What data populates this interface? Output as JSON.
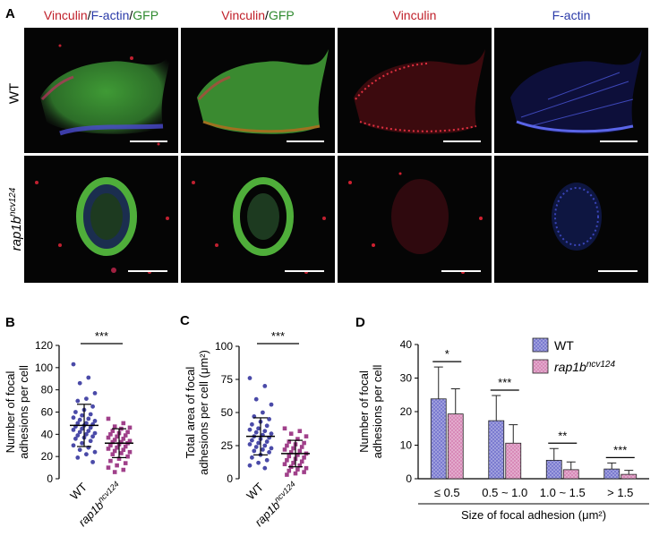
{
  "figure": {
    "panel_letters": {
      "a": "A",
      "b": "B",
      "c": "C",
      "d": "D"
    },
    "column_titles": [
      {
        "parts": [
          {
            "text": "Vinculin",
            "color": "#c0202a"
          },
          {
            "text": "/",
            "color": "#000000"
          },
          {
            "text": "F-actin",
            "color": "#2a3aa8"
          },
          {
            "text": "/",
            "color": "#000000"
          },
          {
            "text": "GFP",
            "color": "#2f8a2f"
          }
        ]
      },
      {
        "parts": [
          {
            "text": "Vinculin",
            "color": "#c0202a"
          },
          {
            "text": "/",
            "color": "#000000"
          },
          {
            "text": "GFP",
            "color": "#2f8a2f"
          }
        ]
      },
      {
        "parts": [
          {
            "text": "Vinculin",
            "color": "#c0202a"
          }
        ]
      },
      {
        "parts": [
          {
            "text": "F-actin",
            "color": "#2a3aa8"
          }
        ]
      }
    ],
    "row_labels": {
      "wt": "WT",
      "mutant_base": "rap1b",
      "mutant_sup": "ncv124"
    }
  },
  "chart_data": [
    {
      "id": "B",
      "type": "scatter",
      "ylabel_line1": "Number of focal",
      "ylabel_line2": "adhesions per cell",
      "ylim": [
        0,
        120
      ],
      "yticks": [
        0,
        20,
        40,
        60,
        80,
        100,
        120
      ],
      "categories": [
        "WT",
        "rap1b"
      ],
      "category_sup": [
        "",
        "ncv124"
      ],
      "means": [
        48,
        32
      ],
      "sd": [
        19,
        13
      ],
      "significance": "***",
      "colors": [
        "#4a4aa8",
        "#a0408a"
      ],
      "points": [
        [
          103,
          91,
          86,
          77,
          72,
          70,
          65,
          62,
          60,
          58,
          57,
          55,
          54,
          53,
          52,
          50,
          50,
          49,
          48,
          47,
          46,
          45,
          44,
          43,
          42,
          41,
          40,
          39,
          38,
          37,
          36,
          34,
          32,
          30,
          28,
          26,
          24,
          22,
          19,
          15
        ],
        [
          54,
          50,
          47,
          46,
          45,
          43,
          42,
          41,
          40,
          39,
          38,
          37,
          36,
          35,
          34,
          33,
          33,
          32,
          31,
          30,
          29,
          28,
          27,
          26,
          25,
          24,
          23,
          22,
          20,
          18,
          16,
          14,
          12,
          10,
          8,
          6
        ]
      ]
    },
    {
      "id": "C",
      "type": "scatter",
      "ylabel_line1": "Total area of focal",
      "ylabel_line2": "adhesions per cell (μm²)",
      "ylim": [
        0,
        100
      ],
      "yticks": [
        0,
        25,
        50,
        75,
        100
      ],
      "categories": [
        "WT",
        "rap1b"
      ],
      "category_sup": [
        "",
        "ncv124"
      ],
      "means": [
        32,
        19
      ],
      "sd": [
        14,
        10
      ],
      "significance": "***",
      "colors": [
        "#4a4aa8",
        "#a0408a"
      ],
      "points": [
        [
          76,
          70,
          60,
          56,
          50,
          47,
          45,
          43,
          41,
          40,
          38,
          37,
          36,
          35,
          34,
          33,
          32,
          31,
          30,
          29,
          28,
          27,
          26,
          25,
          24,
          23,
          22,
          21,
          20,
          18,
          16,
          14,
          12,
          10,
          8
        ],
        [
          38,
          36,
          34,
          32,
          30,
          28,
          27,
          26,
          25,
          24,
          23,
          22,
          21,
          20,
          19,
          18,
          17,
          16,
          15,
          14,
          13,
          12,
          11,
          10,
          9,
          8,
          7,
          6,
          5,
          4,
          3
        ]
      ]
    },
    {
      "id": "D",
      "type": "bar",
      "ylabel_line1": "Number of focal",
      "ylabel_line2": "adhesions per cell",
      "xlabel": "Size of focal adhesion (μm²)",
      "ylim": [
        0,
        40
      ],
      "yticks": [
        0,
        10,
        20,
        30,
        40
      ],
      "categories": [
        "≤ 0.5",
        "0.5 ~ 1.0",
        "1.0 ~ 1.5",
        "> 1.5"
      ],
      "series": [
        {
          "name": "WT",
          "name_sup": "",
          "color": "#7b7bd0",
          "values": [
            23.8,
            17.3,
            5.5,
            2.9
          ],
          "sd": [
            9.5,
            7.5,
            3.5,
            1.8
          ]
        },
        {
          "name": "rap1b",
          "name_sup": "ncv124",
          "color": "#d88ab8",
          "values": [
            19.3,
            10.6,
            2.7,
            1.3
          ],
          "sd": [
            7.5,
            5.5,
            2.3,
            1.2
          ]
        }
      ],
      "significance": [
        "*",
        "***",
        "**",
        "***"
      ]
    }
  ]
}
